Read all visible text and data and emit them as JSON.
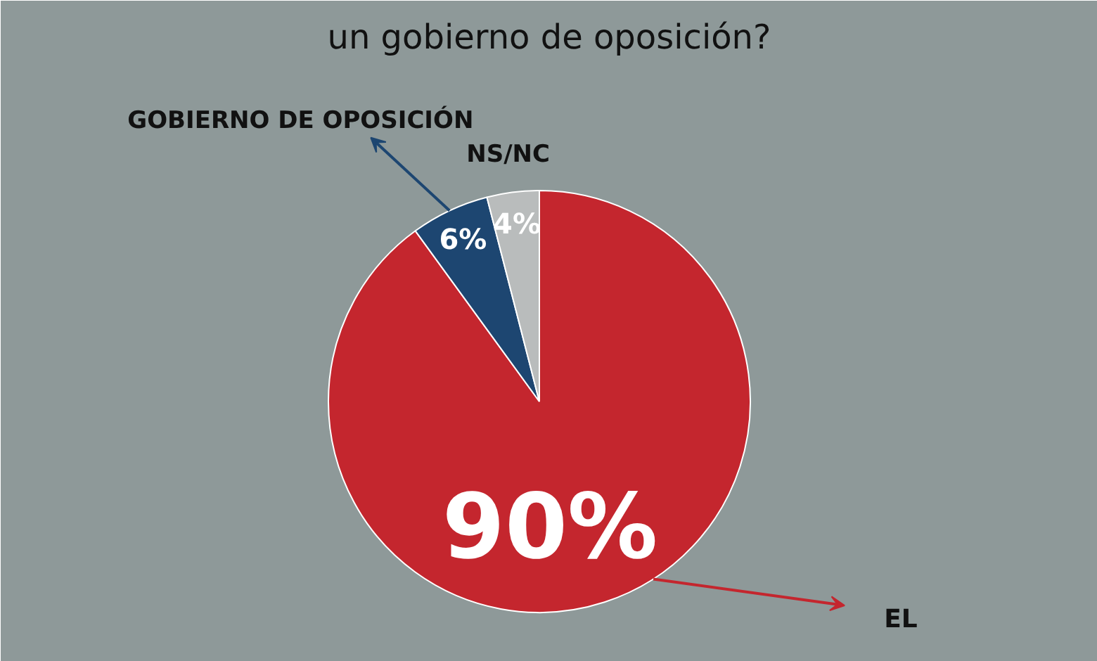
{
  "chart_data": {
    "type": "pie",
    "title": "un gobierno de oposición?",
    "categories": [
      "EL",
      "GOBIERNO DE OPOSICIÓN",
      "NS/NC"
    ],
    "values": [
      90,
      6,
      4
    ],
    "colors": [
      "#c4262e",
      "#1d4671",
      "#b9bcbc"
    ],
    "value_labels": [
      "90%",
      "6%",
      "4%"
    ]
  }
}
